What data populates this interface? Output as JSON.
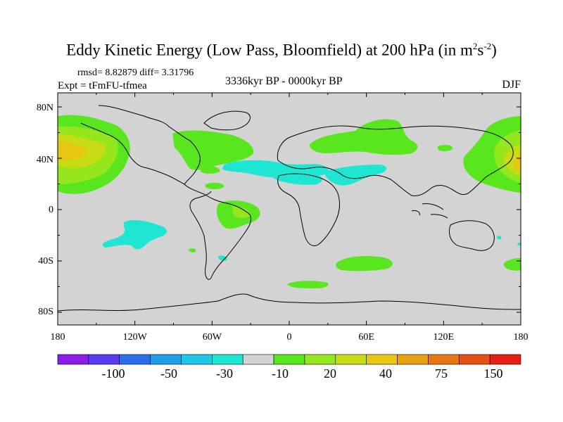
{
  "title": {
    "main": "Eddy Kinetic Energy (Low Pass, Bloomfield) at 200 hPa (in m",
    "sup1": "2",
    "mid": "s",
    "sup2": "-2",
    "end": ")"
  },
  "stats": "rmsd= 8.82879 diff= 3.31796",
  "experiment": "Expt = tFmFU-tfmea",
  "period": "3336kyr BP - 0000kyr BP",
  "season": "DJF",
  "map": {
    "background_color": "#d3d3d3",
    "lat_labels": [
      "80N",
      "40N",
      "0",
      "40S",
      "80S"
    ],
    "lon_labels": [
      "180",
      "120W",
      "60W",
      "0",
      "60E",
      "120E",
      "180"
    ]
  },
  "colorbar": {
    "colors": [
      "#8a1ee6",
      "#5a3cf0",
      "#2a6ee8",
      "#1e9ee6",
      "#1ec8e6",
      "#1ee6d2",
      "#d3d3d3",
      "#5ae61e",
      "#96e61e",
      "#c8dc14",
      "#e6c814",
      "#e6a014",
      "#e67814",
      "#e65014",
      "#e61e14"
    ],
    "labels": [
      "-100",
      "-50",
      "-30",
      "-10",
      "20",
      "40",
      "75",
      "150"
    ]
  }
}
